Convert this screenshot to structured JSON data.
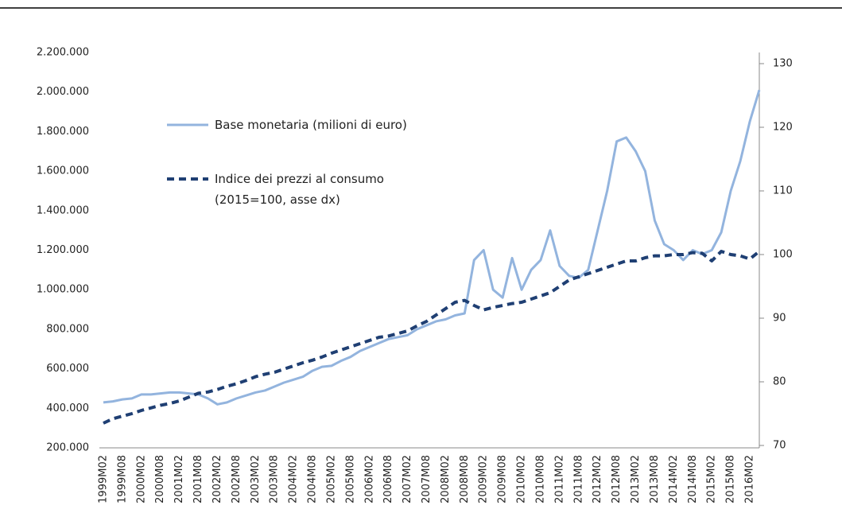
{
  "chart_data": {
    "type": "line",
    "categories": [
      "1999M02",
      null,
      "1999M08",
      null,
      "2000M02",
      null,
      "2000M08",
      null,
      "2001M02",
      null,
      "2001M08",
      null,
      "2002M02",
      null,
      "2002M08",
      null,
      "2003M02",
      null,
      "2003M08",
      null,
      "2004M02",
      null,
      "2004M08",
      null,
      "2005M02",
      null,
      "2005M08",
      null,
      "2006M02",
      null,
      "2006M08",
      null,
      "2007M02",
      null,
      "2007M08",
      null,
      "2008M02",
      null,
      "2008M08",
      null,
      "2009M02",
      null,
      "2009M08",
      null,
      "2010M02",
      null,
      "2010M08",
      null,
      "2011M02",
      null,
      "2011M08",
      null,
      "2012M02",
      null,
      "2012M08",
      null,
      "2013M02",
      null,
      "2013M08",
      null,
      "2014M02",
      null,
      "2014M08",
      null,
      "2015M02",
      null,
      "2015M08",
      null,
      "2016M02",
      null
    ],
    "series": [
      {
        "name": "Base monetaria (milioni di euro)",
        "color": "#93b4de",
        "dashed": false,
        "values": [
          430000,
          435000,
          445000,
          450000,
          470000,
          470000,
          475000,
          480000,
          480000,
          475000,
          470000,
          450000,
          420000,
          430000,
          450000,
          465000,
          480000,
          490000,
          510000,
          530000,
          545000,
          560000,
          590000,
          610000,
          615000,
          640000,
          660000,
          690000,
          710000,
          730000,
          750000,
          760000,
          770000,
          800000,
          820000,
          840000,
          850000,
          870000,
          880000,
          1150000,
          1200000,
          1000000,
          960000,
          1160000,
          1000000,
          1100000,
          1150000,
          1300000,
          1120000,
          1070000,
          1060000,
          1100000,
          1300000,
          1500000,
          1750000,
          1770000,
          1700000,
          1600000,
          1350000,
          1230000,
          1200000,
          1150000,
          1200000,
          1180000,
          1200000,
          1290000,
          1500000,
          1650000,
          1850000,
          2010000
        ]
      },
      {
        "name": "Indice dei prezzi al consumo (2015=100, asse dx)",
        "color": "#1f3f73",
        "dashed": true,
        "axis": "y2",
        "values": [
          73.5,
          74.2,
          74.6,
          75.0,
          75.5,
          75.9,
          76.3,
          76.6,
          77.0,
          77.6,
          78.2,
          78.4,
          78.8,
          79.3,
          79.7,
          80.2,
          80.8,
          81.2,
          81.5,
          82.0,
          82.5,
          83.0,
          83.4,
          83.9,
          84.5,
          85.0,
          85.5,
          86.0,
          86.5,
          87.0,
          87.2,
          87.6,
          88.0,
          88.8,
          89.5,
          90.5,
          91.5,
          92.5,
          92.8,
          92.0,
          91.3,
          91.7,
          92.0,
          92.3,
          92.5,
          93.0,
          93.5,
          94.0,
          95.0,
          96.0,
          96.5,
          97.0,
          97.5,
          98.0,
          98.5,
          99.0,
          99.0,
          99.5,
          99.8,
          99.8,
          100.0,
          100.0,
          100.3,
          100.2,
          99.0,
          100.5,
          100.0,
          99.8,
          99.3,
          100.5
        ]
      }
    ],
    "ylim": [
      200000,
      2200000
    ],
    "yticks": [
      {
        "value": 200000,
        "label": "200.000"
      },
      {
        "value": 400000,
        "label": "400.000"
      },
      {
        "value": 600000,
        "label": "600.000"
      },
      {
        "value": 800000,
        "label": "800.000"
      },
      {
        "value": 1000000,
        "label": "1.000.000"
      },
      {
        "value": 1200000,
        "label": "1.200.000"
      },
      {
        "value": 1400000,
        "label": "1.400.000"
      },
      {
        "value": 1600000,
        "label": "1.600.000"
      },
      {
        "value": 1800000,
        "label": "1.800.000"
      },
      {
        "value": 2000000,
        "label": "2.000.000"
      },
      {
        "value": 2200000,
        "label": "2.200.000"
      }
    ],
    "y2lim": [
      70,
      130
    ],
    "y2ticks": [
      70,
      80,
      90,
      100,
      110,
      120,
      130
    ],
    "grid": false
  }
}
